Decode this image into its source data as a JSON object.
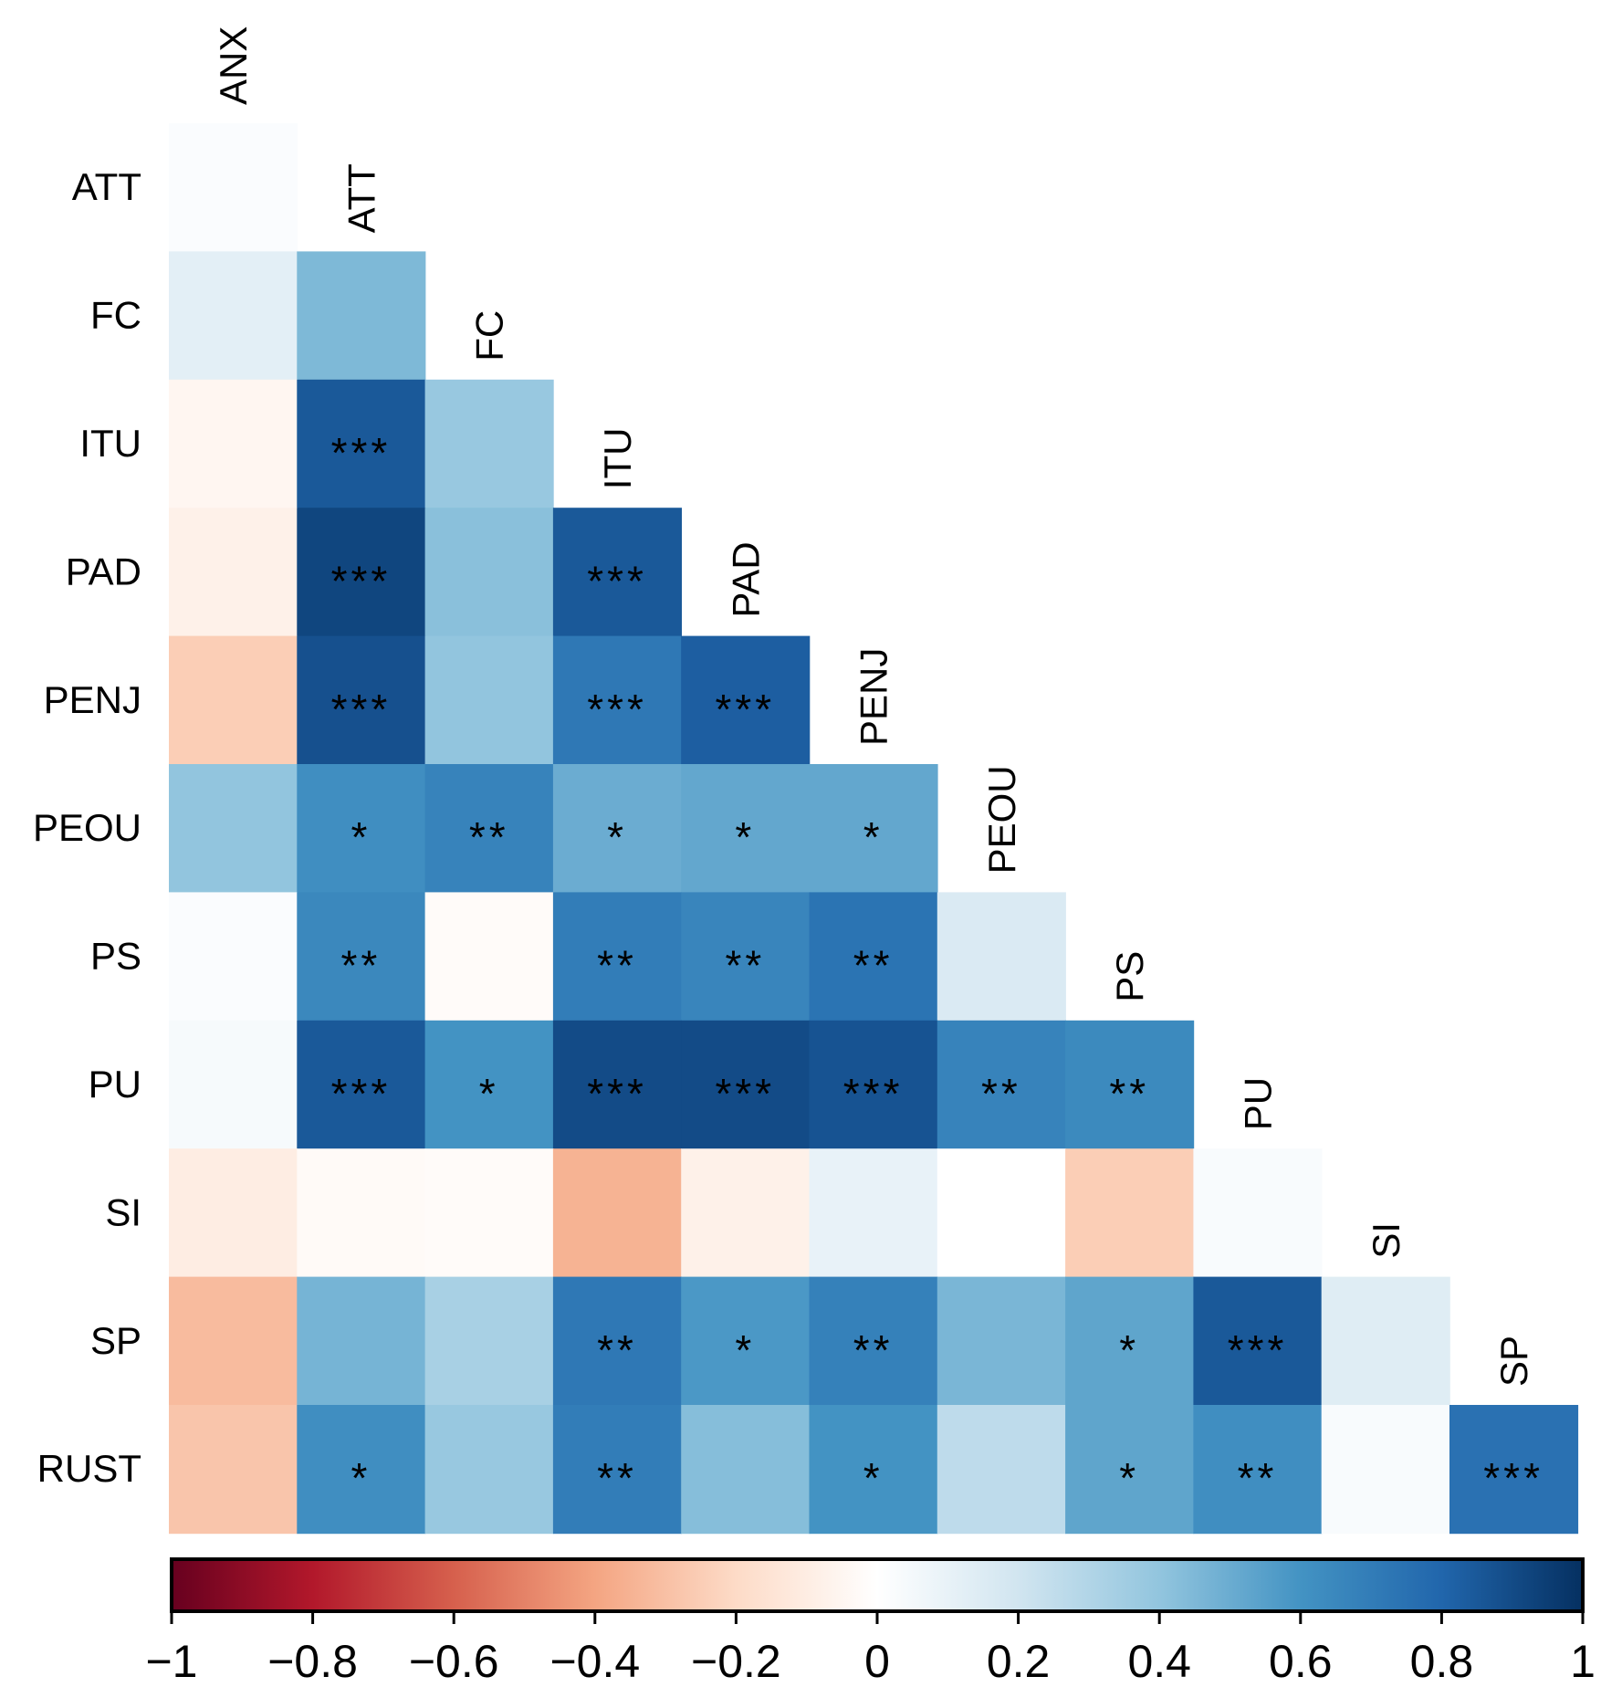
{
  "chart_data": {
    "type": "heatmap",
    "title": "",
    "row_labels": [
      "ATT",
      "FC",
      "ITU",
      "PAD",
      "PENJ",
      "PEOU",
      "PS",
      "PU",
      "SI",
      "SP",
      "RUST"
    ],
    "column_labels": [
      "ANX",
      "ATT",
      "FC",
      "ITU",
      "PAD",
      "PENJ",
      "PEOU",
      "PS",
      "PU",
      "SI",
      "SP"
    ],
    "values": [
      [
        0.02
      ],
      [
        0.12,
        0.45
      ],
      [
        -0.05,
        0.85,
        0.38
      ],
      [
        -0.08,
        0.92,
        0.42,
        0.85
      ],
      [
        -0.25,
        0.88,
        0.4,
        0.72,
        0.83
      ],
      [
        0.4,
        0.62,
        0.67,
        0.5,
        0.52,
        0.52
      ],
      [
        0.02,
        0.65,
        -0.02,
        0.7,
        0.66,
        0.74,
        0.16
      ],
      [
        0.04,
        0.85,
        0.6,
        0.9,
        0.9,
        0.87,
        0.67,
        0.64
      ],
      [
        -0.1,
        -0.03,
        -0.02,
        -0.35,
        -0.08,
        0.1,
        0.0,
        -0.25,
        0.03
      ],
      [
        -0.32,
        0.47,
        0.33,
        0.72,
        0.58,
        0.68,
        0.46,
        0.53,
        0.85,
        0.14
      ],
      [
        -0.28,
        0.62,
        0.38,
        0.7,
        0.43,
        0.6,
        0.26,
        0.53,
        0.62,
        0.03,
        0.75
      ]
    ],
    "significance": [
      [
        ""
      ],
      [
        "",
        ""
      ],
      [
        "",
        "***",
        ""
      ],
      [
        "",
        "***",
        "",
        "***"
      ],
      [
        "",
        "***",
        "",
        "***",
        "***"
      ],
      [
        "",
        "*",
        "**",
        "*",
        "*",
        "*"
      ],
      [
        "",
        "**",
        "",
        "**",
        "**",
        "**",
        ""
      ],
      [
        "",
        "***",
        "*",
        "***",
        "***",
        "***",
        "**",
        "**"
      ],
      [
        "",
        "",
        "",
        "",
        "",
        "",
        "",
        "",
        ""
      ],
      [
        "",
        "",
        "",
        "**",
        "*",
        "**",
        "",
        "*",
        "***",
        ""
      ],
      [
        "",
        "*",
        "",
        "**",
        "",
        "*",
        "",
        "*",
        "**",
        "",
        "***"
      ]
    ],
    "colorbar": {
      "range": [
        -1,
        1
      ],
      "ticks": [
        "−1",
        "−0.8",
        "−0.6",
        "−0.4",
        "−0.2",
        "0",
        "0.2",
        "0.4",
        "0.6",
        "0.8",
        "1"
      ],
      "tick_values": [
        -1,
        -0.8,
        -0.6,
        -0.4,
        -0.2,
        0,
        0.2,
        0.4,
        0.6,
        0.8,
        1
      ],
      "palette": [
        "#67001f",
        "#b2182b",
        "#d6604d",
        "#f4a582",
        "#fddbc7",
        "#ffffff",
        "#d1e5f0",
        "#92c5de",
        "#4393c3",
        "#2166ac",
        "#053061"
      ]
    }
  }
}
